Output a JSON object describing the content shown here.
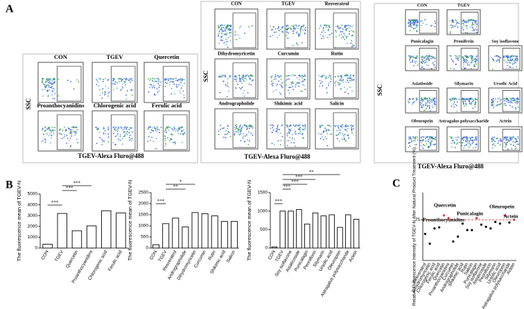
{
  "panels": {
    "a": "A",
    "b": "B",
    "c": "C"
  },
  "panel_a": {
    "groups": [
      {
        "y_label": "SSC",
        "x_label": "TGEV-Alexa Fluro@488",
        "plots": [
          "CON",
          "TGEV",
          "Quercetin",
          "Proanthocyanidins",
          "Chlorogenic acid",
          "Ferulic acid"
        ]
      },
      {
        "y_label": "SSC",
        "x_label": "TGEV-Alexa Fluro@488",
        "plots": [
          "CON",
          "TGEV",
          "Resveratrol",
          "Dihydromyricetin",
          "Curcumin",
          "Rutin",
          "Andrographolide",
          "Shikimic acid",
          "Salicin"
        ]
      },
      {
        "y_label": "SSC",
        "x_label": "TGEV-Alexa Fluro@488",
        "plots": [
          "CON",
          "TGEV",
          "Punicalagin",
          "Proniferin",
          "Soy isoflavone",
          "Asiatioside",
          "Silymarin",
          "Ursolic Acid",
          "Oleuropein",
          "Astragalus polysaccharide",
          "Actein"
        ]
      }
    ]
  },
  "chart_data": [
    {
      "type": "bar",
      "y_label": "The  fluorescence mean of TGEV-N",
      "categories": [
        "CON",
        "TGEV",
        "Quercetin",
        "Proanthocyanidins",
        "Chlorogenic acid",
        "Ferulic acid"
      ],
      "values": [
        350,
        3200,
        1600,
        2050,
        3450,
        3250
      ],
      "ylim": [
        0,
        5000
      ],
      "yticks": [
        0,
        1000,
        2000,
        3000,
        4000,
        5000
      ],
      "annotations": [
        "***",
        "***",
        "***"
      ],
      "color": "#ffffff"
    },
    {
      "type": "bar",
      "y_label": "The  fluorescence mean of TGEV-N",
      "categories": [
        "CON",
        "TGEV",
        "Resveratrol",
        "Andrographolide",
        "Dihydromyricetin",
        "Curcumin",
        "Rutin",
        "Shikimic acid",
        "Salicin"
      ],
      "values": [
        150,
        1100,
        1350,
        950,
        1600,
        1550,
        1450,
        1200,
        1200
      ],
      "ylim": [
        0,
        2500
      ],
      "yticks": [
        0,
        500,
        1000,
        1500,
        2000,
        2500
      ],
      "annotations": [
        "***",
        "**",
        "*"
      ],
      "color": "#ffffff"
    },
    {
      "type": "bar",
      "y_label": "The  fluorescence mean of TGEV-N",
      "categories": [
        "CON",
        "TGEV",
        "Soy isoflavone",
        "Asiaticoside",
        "Punicalagin",
        "Peoniflorin",
        "Silymarin",
        "Ursolic acid",
        "Oleuropein",
        "Astragalus polysaccharide",
        "Actein"
      ],
      "values": [
        30,
        1000,
        1000,
        1040,
        650,
        950,
        870,
        900,
        560,
        900,
        780
      ],
      "ylim": [
        0,
        1500
      ],
      "yticks": [
        0,
        500,
        1000,
        1500
      ],
      "annotations": [
        "***",
        "***",
        "***",
        "***",
        "**"
      ],
      "color": "#ffffff"
    },
    {
      "type": "dot",
      "y_label": "Relative Fluorescence Intensity of TGEV-N After Natural Product Treatment (%)",
      "categories": [
        "Resveratrol",
        "Dihydromyricetin",
        "Chlorogenic acid",
        "Ferulic acid",
        "Quercetin",
        "Proanthocyanidins",
        "Curcumin",
        "Andrographolide",
        "Shikimic acid",
        "Rutin",
        "Salicin",
        "Punicalagin",
        "Soy isoflavone",
        "Asiaticoside",
        "Peoniflorin",
        "Silymarin",
        "Ursolic acid",
        "Oleuropein",
        "Astragalus polysaccharide",
        "Actein"
      ],
      "values": [
        49,
        31,
        59,
        61,
        83,
        78,
        35,
        44,
        68,
        56,
        56,
        78,
        66,
        62,
        59,
        71,
        68,
        83,
        70,
        75
      ],
      "colors": [
        "#000",
        "#000",
        "#000",
        "#000",
        "#e03030",
        "#e03030",
        "#000",
        "#000",
        "#000",
        "#000",
        "#000",
        "#e03030",
        "#000",
        "#000",
        "#000",
        "#000",
        "#000",
        "#e03030",
        "#000",
        "#e03030"
      ],
      "ylim": [
        0,
        125
      ],
      "yticks": [
        75
      ],
      "reference_line": 75,
      "annotations": [
        "Quercetin",
        "Proanthocyanidins",
        "Punicalagin",
        "Oleuropein",
        "Actein"
      ]
    }
  ]
}
